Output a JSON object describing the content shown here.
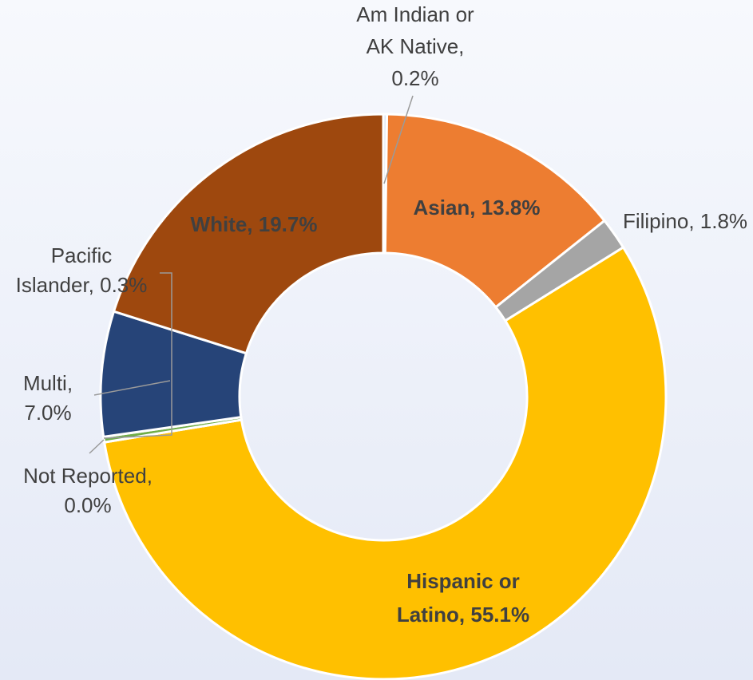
{
  "chart_data": {
    "type": "donut",
    "values": [
      0.2,
      13.8,
      1.8,
      55.1,
      0.0,
      0.3,
      7.0,
      19.7
    ],
    "value_labels": [
      "Am Indian or\nAK Native,\n0.2%",
      "Asian, 13.8%",
      "Filipino, 1.8%",
      "Hispanic or\nLatino, 55.1%",
      "Not Reported,\n0.0%",
      "Pacific\nIslander, 0.3%",
      "Multi,\n7.0%",
      "White, 19.7%"
    ],
    "colors": [
      "#dce4f2",
      "#ed7d31",
      "#a5a5a5",
      "#ffc000",
      "#4472c4",
      "#70ad47",
      "#264478",
      "#9e480e"
    ]
  }
}
